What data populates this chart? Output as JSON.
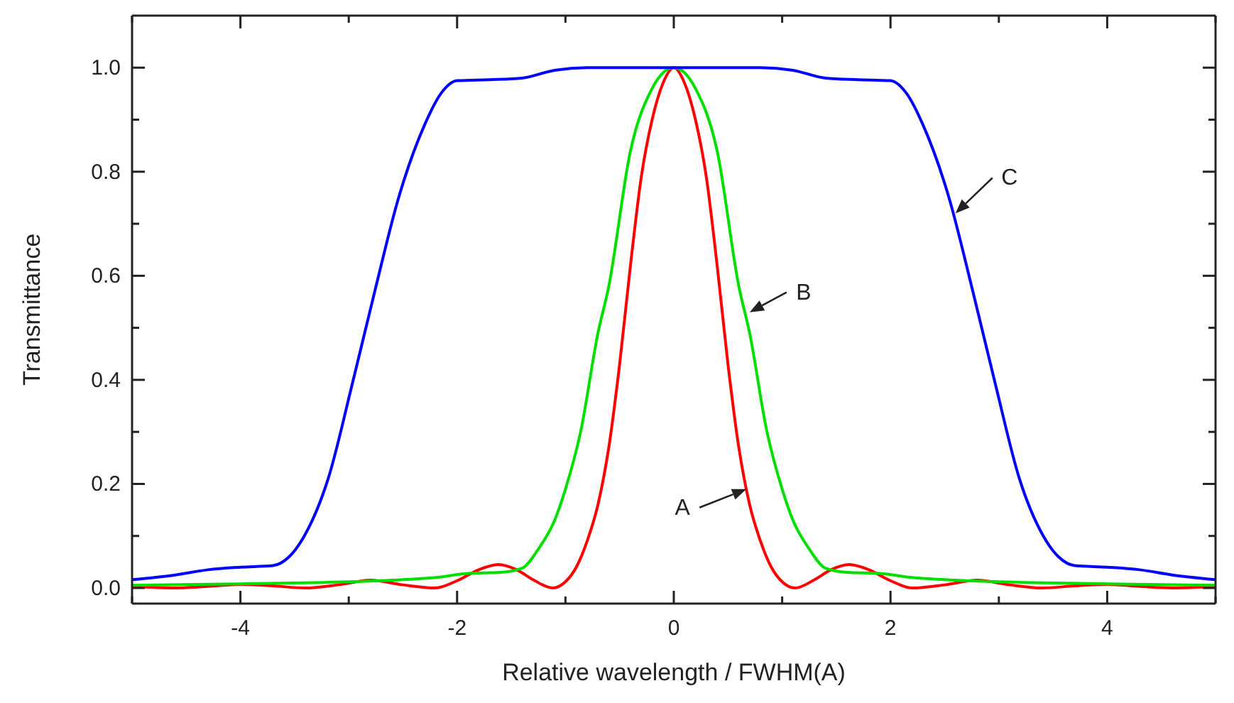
{
  "chart_data": {
    "type": "line",
    "xlabel": "Relative wavelength / FWHM(A)",
    "ylabel": "Transmittance",
    "xlim": [
      -5,
      5
    ],
    "ylim": [
      -0.03,
      1.1
    ],
    "xticks": [
      {
        "value": -5,
        "label": null
      },
      -4,
      {
        "value": -3,
        "label": null
      },
      -2,
      {
        "value": -1,
        "label": null
      },
      0,
      {
        "value": 1,
        "label": null
      },
      2,
      {
        "value": 3,
        "label": null
      },
      4,
      {
        "value": 5,
        "label": null
      }
    ],
    "yticks": [
      {
        "value": 0,
        "label": "0.0"
      },
      {
        "value": 0.1,
        "label": null
      },
      {
        "value": 0.2,
        "label": "0.2"
      },
      {
        "value": 0.3,
        "label": null
      },
      {
        "value": 0.4,
        "label": "0.4"
      },
      {
        "value": 0.5,
        "label": null
      },
      {
        "value": 0.6,
        "label": "0.6"
      },
      {
        "value": 0.7,
        "label": null
      },
      {
        "value": 0.8,
        "label": "0.8"
      },
      {
        "value": 0.9,
        "label": null
      },
      {
        "value": 1,
        "label": "1.0"
      }
    ],
    "grid": false,
    "legend": false,
    "series": [
      {
        "color": "#ff0000",
        "x": [
          -5,
          -4.6,
          -4.3,
          -4,
          -3.7,
          -3.4,
          -3.1,
          -2.8,
          -2.5,
          -2.2,
          -2,
          -1.8,
          -1.62,
          -1.45,
          -1.3,
          -1.12,
          -1,
          -0.9,
          -0.8,
          -0.7,
          -0.6,
          -0.5,
          -0.4,
          -0.3,
          -0.2,
          -0.1,
          0,
          0.1,
          0.2,
          0.3,
          0.4,
          0.5,
          0.6,
          0.7,
          0.8,
          0.9,
          1,
          1.12,
          1.3,
          1.45,
          1.62,
          1.8,
          2,
          2.2,
          2.5,
          2.8,
          3.1,
          3.4,
          3.7,
          4,
          4.3,
          4.6,
          5
        ],
        "values": [
          0.003,
          0,
          0.003,
          0.007,
          0.004,
          0,
          0.006,
          0.015,
          0.006,
          0,
          0.014,
          0.035,
          0.045,
          0.035,
          0.016,
          0,
          0.012,
          0.04,
          0.09,
          0.16,
          0.27,
          0.43,
          0.62,
          0.79,
          0.9,
          0.97,
          1,
          0.97,
          0.9,
          0.79,
          0.62,
          0.43,
          0.27,
          0.16,
          0.09,
          0.04,
          0.012,
          0,
          0.016,
          0.035,
          0.045,
          0.035,
          0.014,
          0,
          0.006,
          0.015,
          0.006,
          0,
          0.004,
          0.007,
          0.003,
          0,
          0.003
        ]
      },
      {
        "color": "#00e000",
        "x": [
          -5,
          -4,
          -3,
          -2.6,
          -2.2,
          -1.9,
          -1.6,
          -1.4,
          -1.25,
          -1.1,
          -1,
          -0.86,
          -0.7,
          -0.6,
          -0.4,
          -0.2,
          0,
          0.2,
          0.4,
          0.6,
          0.7,
          0.86,
          1,
          1.1,
          1.25,
          1.4,
          1.6,
          1.9,
          2.2,
          2.6,
          3,
          4,
          5
        ],
        "values": [
          0.005,
          0.008,
          0.012,
          0.015,
          0.02,
          0.028,
          0.03,
          0.038,
          0.075,
          0.13,
          0.19,
          0.3,
          0.49,
          0.58,
          0.84,
          0.96,
          1,
          0.96,
          0.84,
          0.58,
          0.49,
          0.3,
          0.19,
          0.13,
          0.075,
          0.038,
          0.03,
          0.028,
          0.02,
          0.015,
          0.012,
          0.008,
          0.005
        ]
      },
      {
        "color": "#0000ff",
        "x": [
          -5,
          -4.6,
          -4.3,
          -4,
          -3.7,
          -3.55,
          -3.41,
          -3.19,
          -2.97,
          -2.76,
          -2.54,
          -2.3,
          -2.15,
          -2,
          -1.7,
          -1.4,
          -1.1,
          -0.8,
          0,
          0.8,
          1.1,
          1.4,
          1.7,
          2,
          2.15,
          2.3,
          2.54,
          2.76,
          2.97,
          3.19,
          3.41,
          3.55,
          3.7,
          4,
          4.3,
          4.6,
          5
        ],
        "values": [
          0.016,
          0.025,
          0.035,
          0.04,
          0.043,
          0.06,
          0.1,
          0.21,
          0.39,
          0.57,
          0.75,
          0.89,
          0.95,
          0.975,
          0.977,
          0.98,
          0.995,
          1,
          1,
          1,
          0.995,
          0.98,
          0.977,
          0.975,
          0.95,
          0.89,
          0.75,
          0.57,
          0.39,
          0.21,
          0.1,
          0.06,
          0.043,
          0.04,
          0.035,
          0.025,
          0.016
        ]
      }
    ],
    "annotations": [
      {
        "text": "A",
        "x": 0.67,
        "y": 0.19
      },
      {
        "text": "B",
        "x": 0.7,
        "y": 0.53
      },
      {
        "text": "C",
        "x": 2.6,
        "y": 0.72
      }
    ]
  }
}
